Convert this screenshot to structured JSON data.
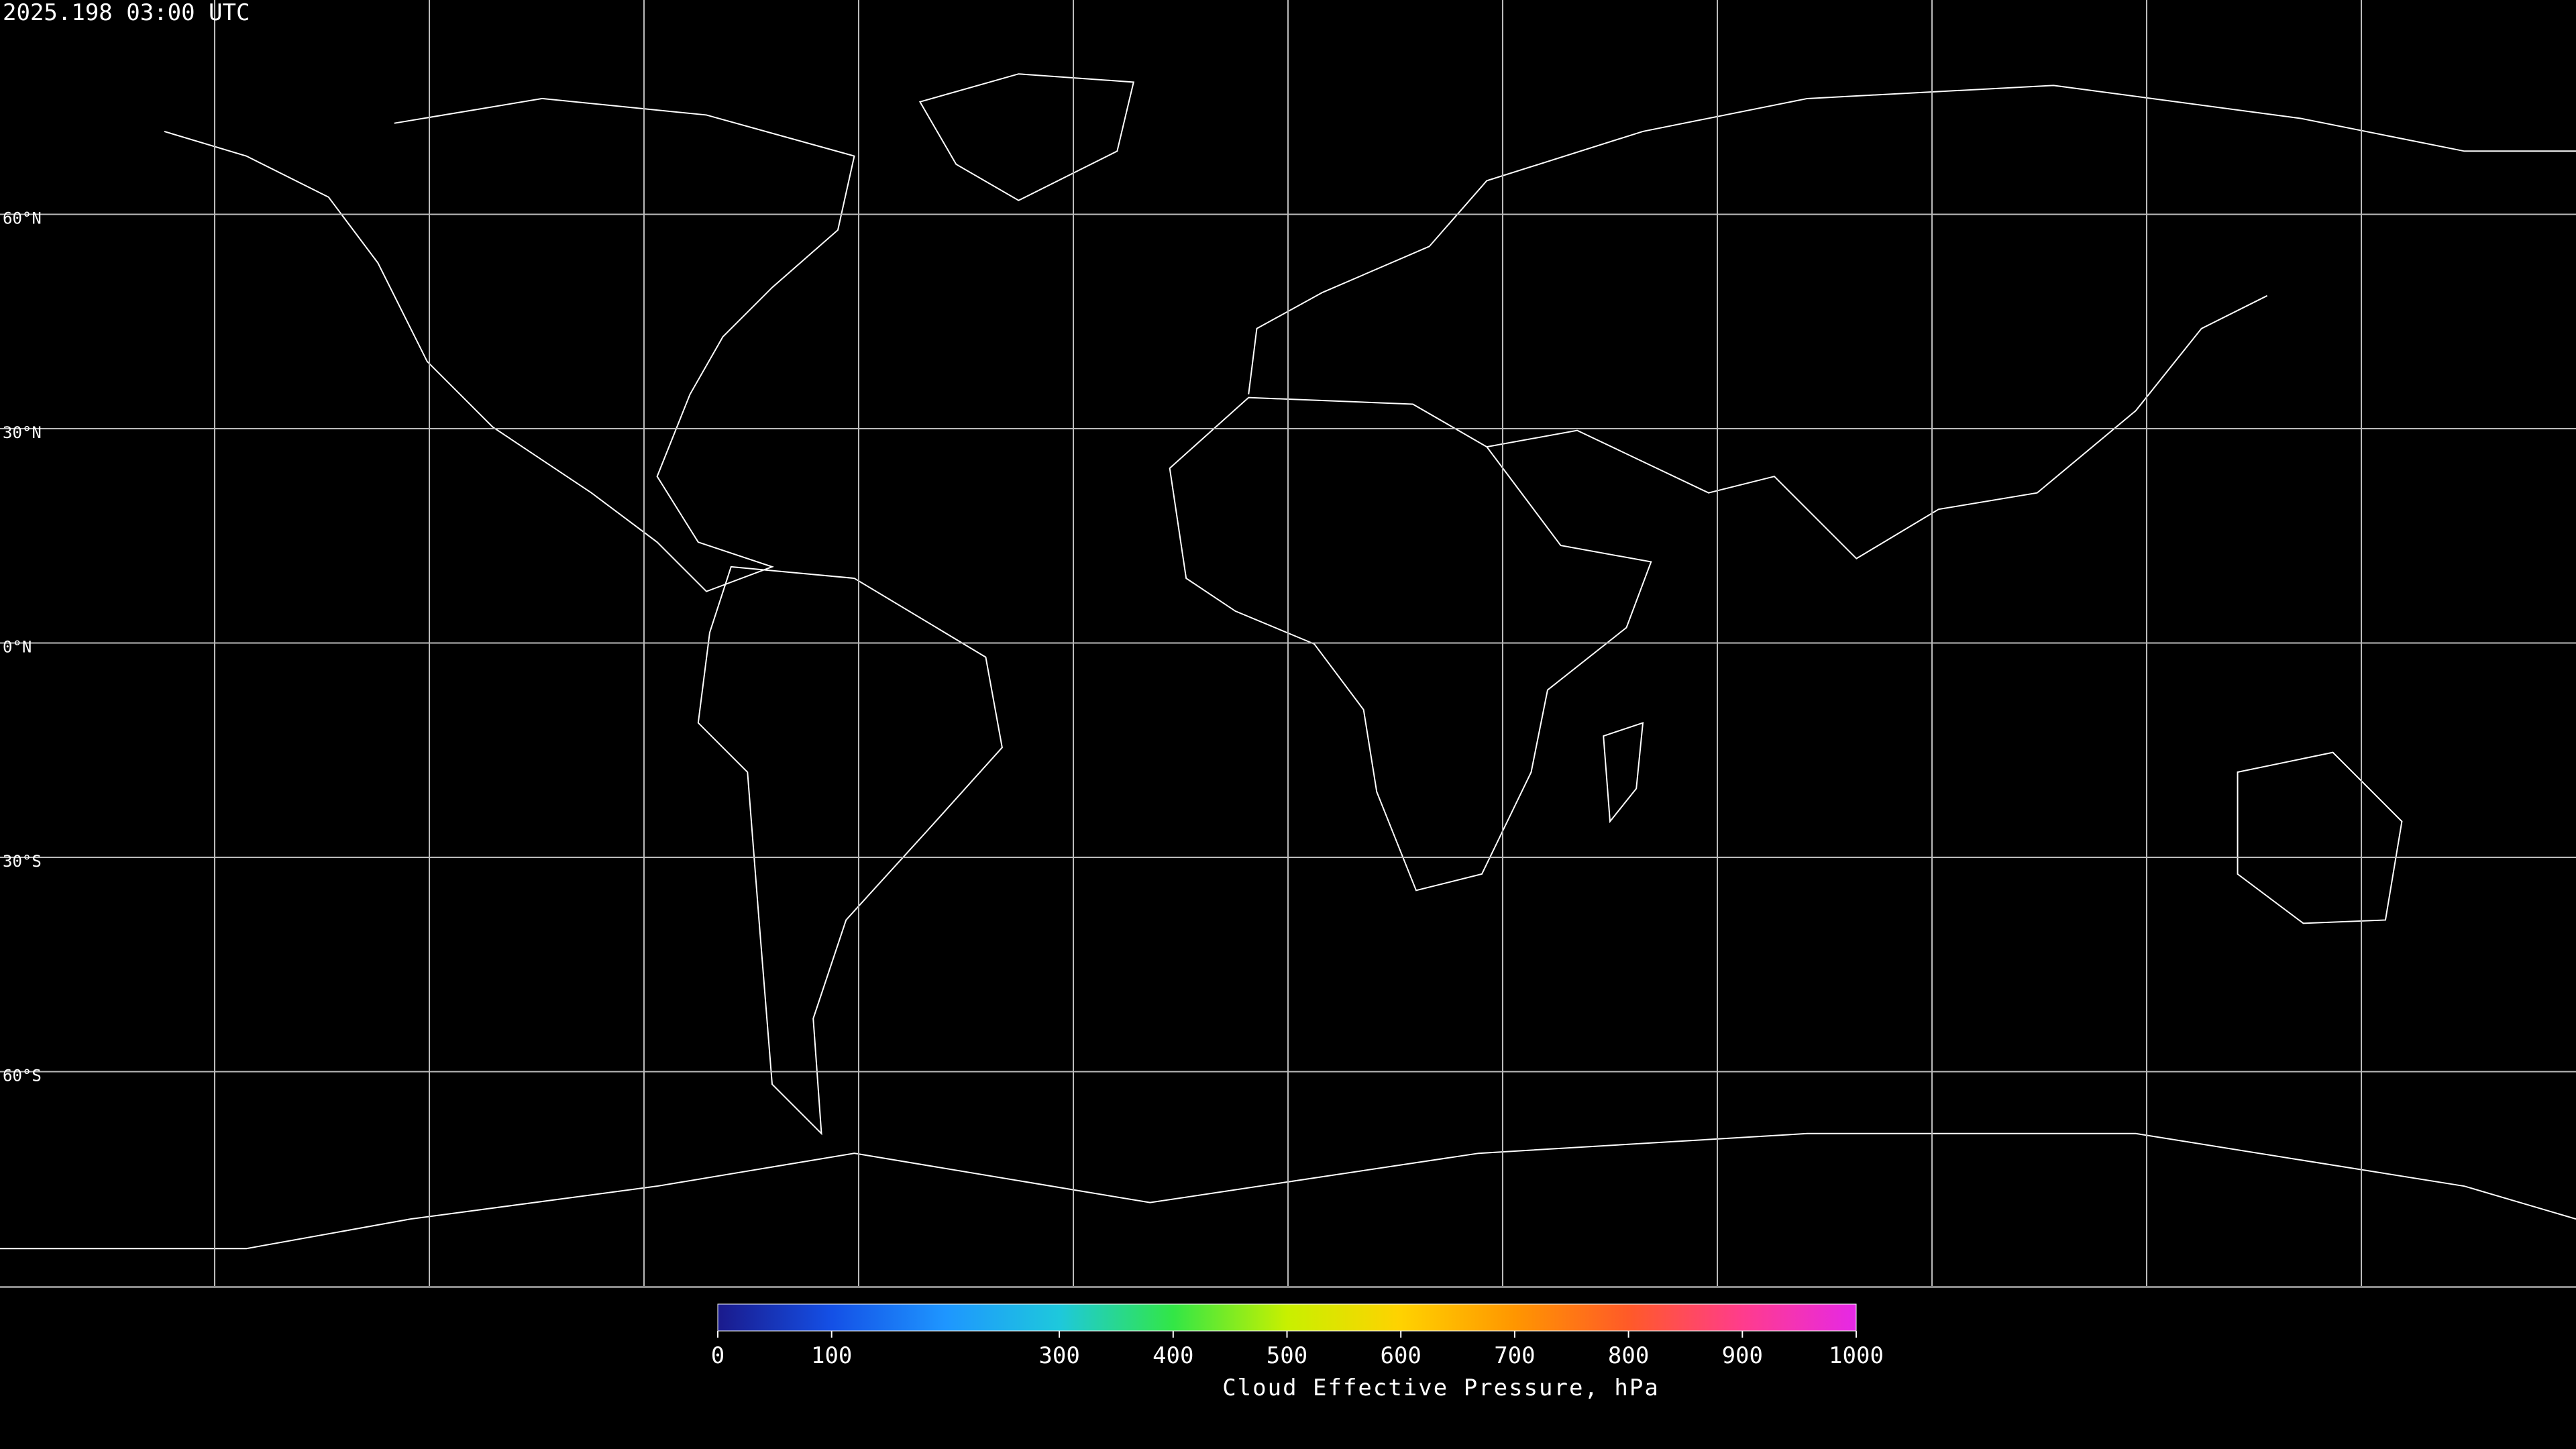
{
  "timestamp": "2025.198 03:00 UTC",
  "grid_labels": [
    "60°N",
    "30°N",
    "0°N",
    "30°S",
    "60°S"
  ],
  "colorbar": {
    "label": "Cloud Effective Pressure, hPa",
    "range": [
      0,
      1000
    ],
    "ticks": [
      0,
      100,
      300,
      400,
      500,
      600,
      700,
      800,
      900,
      1000
    ],
    "colors": [
      "#1a1a8c",
      "#1450e6",
      "#1e96ff",
      "#1ec8dc",
      "#32e646",
      "#c8f000",
      "#ffd200",
      "#ff9600",
      "#ff5a28",
      "#ff3c8c",
      "#e628e6"
    ]
  }
}
